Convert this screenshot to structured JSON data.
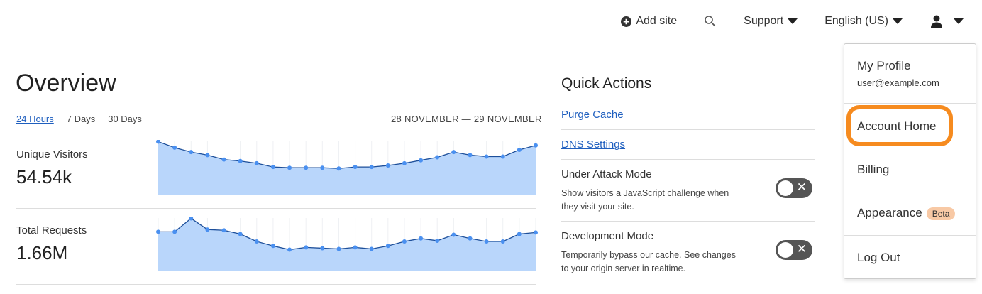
{
  "topbar": {
    "add_site": "Add site",
    "support": "Support",
    "language": "English (US)"
  },
  "overview": {
    "title": "Overview",
    "tabs": [
      "24 Hours",
      "7 Days",
      "30 Days"
    ],
    "active_tab": "24 Hours",
    "date_range": "28 NOVEMBER — 29 NOVEMBER"
  },
  "metrics": [
    {
      "label": "Unique Visitors",
      "value": "54.54k"
    },
    {
      "label": "Total Requests",
      "value": "1.66M"
    }
  ],
  "chart_data": [
    {
      "type": "area",
      "series": [
        {
          "values": [
            71,
            63,
            57,
            53,
            47,
            45,
            42,
            37,
            36,
            36,
            36,
            35,
            37,
            37,
            39,
            42,
            46,
            50,
            57,
            53,
            51,
            51,
            60,
            66
          ]
        }
      ],
      "color": "#4a90f0",
      "fill": "#b9d6fb"
    },
    {
      "type": "area",
      "series": [
        {
          "values": [
            53,
            53,
            71,
            56,
            55,
            50,
            40,
            34,
            29,
            32,
            31,
            30,
            32,
            30,
            34,
            40,
            44,
            41,
            49,
            44,
            40,
            40,
            50,
            52
          ]
        }
      ],
      "color": "#4a90f0",
      "fill": "#b9d6fb"
    }
  ],
  "quick_actions": {
    "title": "Quick Actions",
    "purge": "Purge Cache",
    "dns": "DNS Settings",
    "under_attack": {
      "title": "Under Attack Mode",
      "desc": "Show visitors a JavaScript challenge when they visit your site.",
      "enabled": false
    },
    "dev_mode": {
      "title": "Development Mode",
      "desc": "Temporarily bypass our cache. See changes to your origin server in realtime.",
      "enabled": false
    }
  },
  "user_menu": {
    "profile": "My Profile",
    "email": "user@example.com",
    "account_home": "Account Home",
    "billing": "Billing",
    "appearance": "Appearance",
    "beta": "Beta",
    "logout": "Log Out",
    "highlight_color": "#f68b1f"
  }
}
